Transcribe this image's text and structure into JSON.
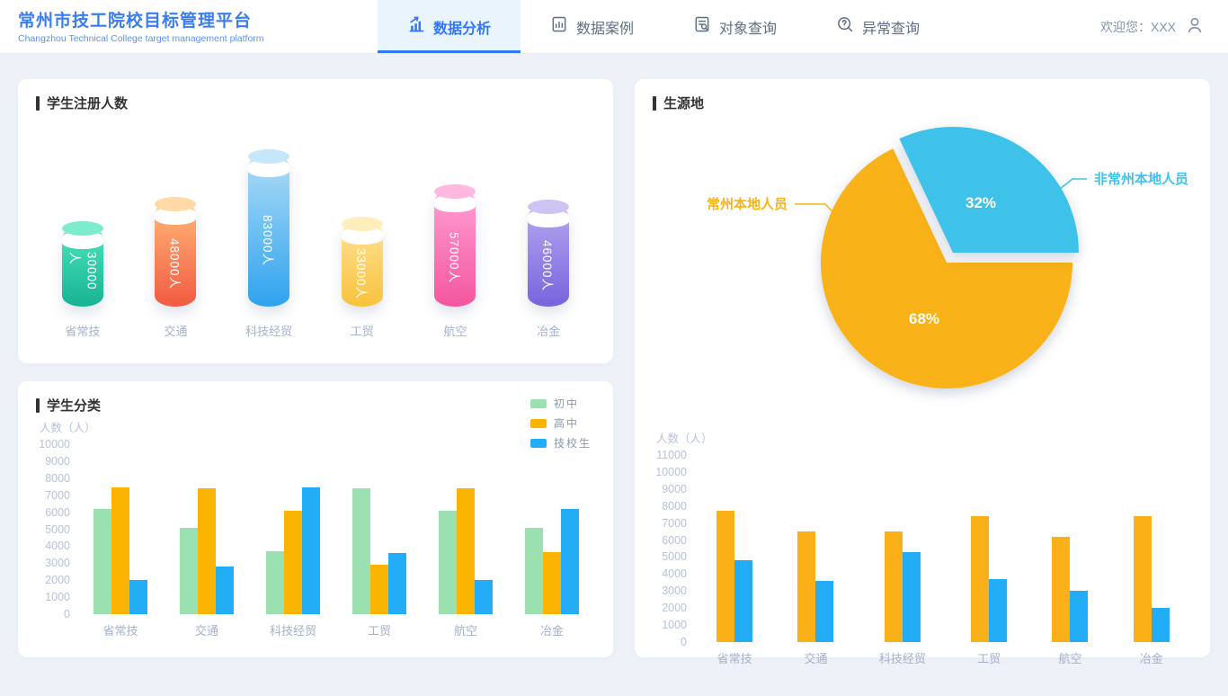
{
  "header": {
    "title": "常州市技工院校目标管理平台",
    "subtitle": "Changzhou Technical College target management platform",
    "tabs": [
      {
        "label": "数据分析",
        "icon": "bar-chart-rise-icon",
        "active": true
      },
      {
        "label": "数据案例",
        "icon": "document-chart-icon",
        "active": false
      },
      {
        "label": "对象查询",
        "icon": "document-search-icon",
        "active": false
      },
      {
        "label": "异常查询",
        "icon": "search-question-icon",
        "active": false
      }
    ],
    "welcome": "欢迎您：XXX",
    "user_icon": "person-icon",
    "accent_color": "#3377f6"
  },
  "chart_data": [
    {
      "name": "student_registration",
      "type": "bar",
      "variant": "cylinder",
      "title": "学生注册人数",
      "categories": [
        "省常技",
        "交通",
        "科技经贸",
        "工贸",
        "航空",
        "冶金"
      ],
      "values": [
        30000,
        48000,
        83000,
        33000,
        57000,
        46000
      ],
      "value_labels": [
        "30000人",
        "48000人",
        "83000人",
        "33000人",
        "57000人",
        "46000人"
      ],
      "colors": [
        {
          "cap": "#7deccd",
          "start": "#4ce5bd",
          "end": "#17b392"
        },
        {
          "cap": "#ffd9a6",
          "start": "#ffb878",
          "end": "#f25a41"
        },
        {
          "cap": "#c6e6f9",
          "start": "#aedcf7",
          "end": "#2ea2ed"
        },
        {
          "cap": "#ffeebb",
          "start": "#ffe195",
          "end": "#f8c23c"
        },
        {
          "cap": "#ffb8e0",
          "start": "#ff9fd3",
          "end": "#f4569e"
        },
        {
          "cap": "#cfc3f4",
          "start": "#b6a7f0",
          "end": "#7764de"
        }
      ]
    },
    {
      "name": "student_origin",
      "type": "pie",
      "title": "生源地",
      "slices": [
        {
          "label": "常州本地人员",
          "pct": 68,
          "pct_label": "68%",
          "color": "#f9b217"
        },
        {
          "label": "非常州本地人员",
          "pct": 32,
          "pct_label": "32%",
          "color": "#3ec2ea"
        }
      ],
      "legend_position": "callout"
    },
    {
      "name": "student_classification",
      "type": "bar",
      "title": "学生分类",
      "ylabel": "人数（人）",
      "ylim": [
        0,
        10000
      ],
      "ytick_step": 1000,
      "grid": false,
      "legend_position": "top-right",
      "categories": [
        "省常技",
        "交通",
        "科技经贸",
        "工贸",
        "航空",
        "冶金"
      ],
      "series": [
        {
          "name": "初中",
          "color": "#9be0b1",
          "values": [
            6200,
            5100,
            3700,
            7400,
            6100,
            5100
          ]
        },
        {
          "name": "高中",
          "color": "#fbb400",
          "values": [
            7450,
            7400,
            6100,
            2900,
            7400,
            3650
          ]
        },
        {
          "name": "技校生",
          "color": "#22adf6",
          "values": [
            2000,
            2800,
            7450,
            3600,
            2000,
            6200
          ]
        }
      ]
    },
    {
      "name": "origin_by_school",
      "type": "bar",
      "title": "",
      "ylabel": "人数（人）",
      "ylim": [
        0,
        11000
      ],
      "ytick_step": 1000,
      "grid": false,
      "categories": [
        "省常技",
        "交通",
        "科技经贸",
        "工贸",
        "航空",
        "冶金"
      ],
      "series": [
        {
          "name": "常州本地人员",
          "color": "#fbb017",
          "values": [
            7700,
            6500,
            6500,
            7400,
            6200,
            7400
          ]
        },
        {
          "name": "非常州本地人员",
          "color": "#22adf6",
          "values": [
            4800,
            3600,
            5300,
            3700,
            3000,
            2000
          ]
        }
      ]
    }
  ]
}
